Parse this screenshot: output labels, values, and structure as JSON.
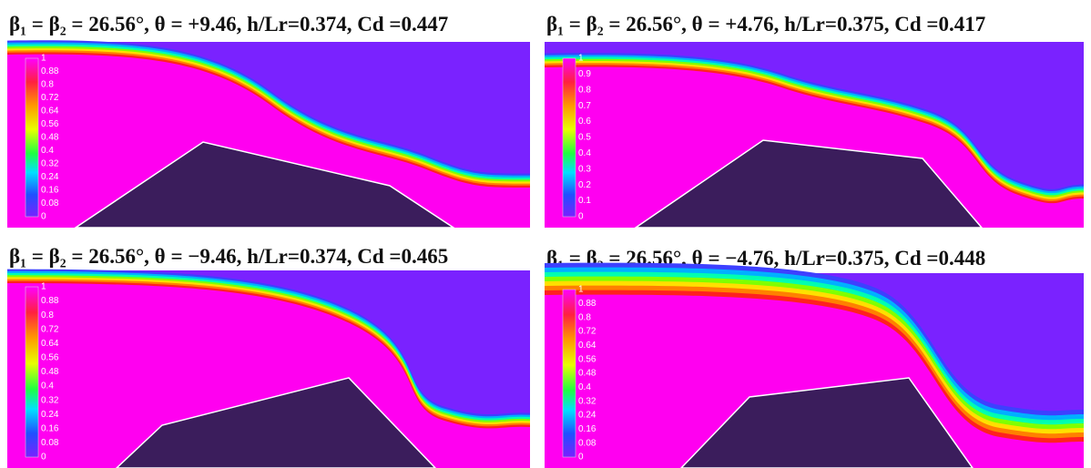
{
  "panels": [
    {
      "title": "β₁ =  β₂ = 26.56°, θ = +9.46, h/Lr=0.374, Cd =0.447",
      "colorbar": [
        "1",
        "0.88",
        "0.8",
        "0.72",
        "0.64",
        "0.56",
        "0.48",
        "0.4",
        "0.32",
        "0.24",
        "0.16",
        "0.08",
        "0"
      ]
    },
    {
      "title": "β₁ =  β₂ = 26.56°, θ = +4.76, h/Lr=0.375, Cd =0.417",
      "colorbar": [
        "1",
        "0.9",
        "0.8",
        "0.7",
        "0.6",
        "0.5",
        "0.4",
        "0.3",
        "0.2",
        "0.1",
        "0"
      ]
    },
    {
      "title": "β₁ =  β₂ = 26.56°, θ = −9.46, h/Lr=0.374, Cd =0.465",
      "colorbar": [
        "1",
        "0.88",
        "0.8",
        "0.72",
        "0.64",
        "0.56",
        "0.48",
        "0.4",
        "0.32",
        "0.24",
        "0.16",
        "0.08",
        "0"
      ]
    },
    {
      "title": "β₁ =  β₂ = 26.56°, θ = −4.76, h/Lr=0.375, Cd =0.448",
      "colorbar": [
        "1",
        "0.88",
        "0.8",
        "0.72",
        "0.64",
        "0.56",
        "0.48",
        "0.4",
        "0.32",
        "0.24",
        "0.16",
        "0.08",
        "0"
      ]
    }
  ]
}
